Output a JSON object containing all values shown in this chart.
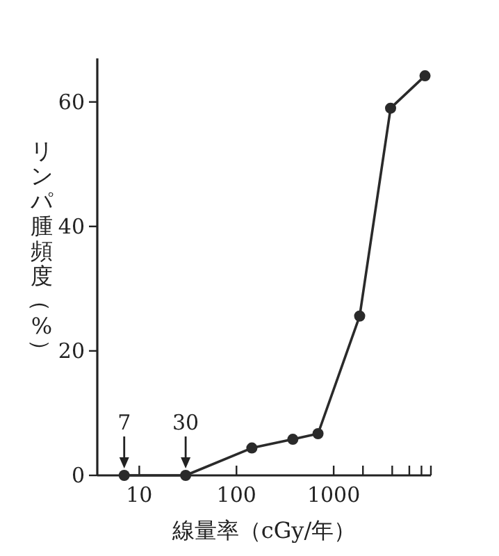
{
  "chart_data": {
    "type": "line",
    "xlabel": "線量率（cGy/年）",
    "ylabel": "リンパ腫頻度（%）",
    "log": "x",
    "marker": "circle",
    "line_style": "solid",
    "color": "#2a2a2a",
    "x": [
      7,
      30,
      144,
      380,
      690,
      1850,
      3850,
      8700
    ],
    "values": [
      0,
      0,
      4.4,
      5.8,
      6.7,
      25.6,
      59.0,
      64.2
    ],
    "xlim": [
      3.7,
      10000
    ],
    "xticks": [
      10,
      100,
      1000,
      {
        "value": 2000,
        "label": null
      },
      {
        "value": 4000,
        "label": null
      },
      {
        "value": 6000,
        "label": null
      },
      {
        "value": 8000,
        "label": null
      },
      {
        "value": 10000,
        "label": null
      }
    ],
    "ylim": [
      0,
      67
    ],
    "yticks": [
      0,
      20,
      40,
      60
    ],
    "annotations": [
      {
        "text": "7",
        "x": 7,
        "y": 0
      },
      {
        "text": "30",
        "x": 30,
        "y": 0
      }
    ]
  }
}
